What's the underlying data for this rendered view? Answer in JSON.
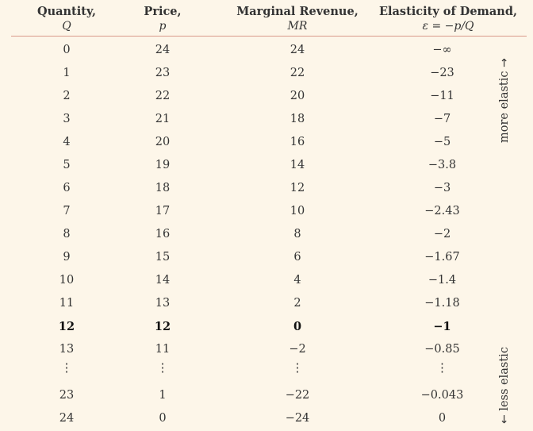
{
  "headers": {
    "quantity": {
      "title": "Quantity,",
      "symbol": "Q"
    },
    "price": {
      "title": "Price,",
      "symbol": "p"
    },
    "mr": {
      "title": "Marginal Revenue,",
      "symbol": "MR"
    },
    "elasticity": {
      "title": "Elasticity of Demand,",
      "symbol": "ε = −p/Q"
    }
  },
  "rows": [
    {
      "q": "0",
      "p": "24",
      "mr": "24",
      "e": "−∞"
    },
    {
      "q": "1",
      "p": "23",
      "mr": "22",
      "e": "−23"
    },
    {
      "q": "2",
      "p": "22",
      "mr": "20",
      "e": "−11"
    },
    {
      "q": "3",
      "p": "21",
      "mr": "18",
      "e": "−7"
    },
    {
      "q": "4",
      "p": "20",
      "mr": "16",
      "e": "−5"
    },
    {
      "q": "5",
      "p": "19",
      "mr": "14",
      "e": "−3.8"
    },
    {
      "q": "6",
      "p": "18",
      "mr": "12",
      "e": "−3"
    },
    {
      "q": "7",
      "p": "17",
      "mr": "10",
      "e": "−2.43"
    },
    {
      "q": "8",
      "p": "16",
      "mr": "8",
      "e": "−2"
    },
    {
      "q": "9",
      "p": "15",
      "mr": "6",
      "e": "−1.67"
    },
    {
      "q": "10",
      "p": "14",
      "mr": "4",
      "e": "−1.4"
    },
    {
      "q": "11",
      "p": "13",
      "mr": "2",
      "e": "−1.18"
    },
    {
      "q": "12",
      "p": "12",
      "mr": "0",
      "e": "−1",
      "bold": true
    },
    {
      "q": "13",
      "p": "11",
      "mr": "−2",
      "e": "−0.85"
    },
    {
      "q": "⋮",
      "p": "⋮",
      "mr": "⋮",
      "e": "⋮",
      "dots": true
    },
    {
      "q": "23",
      "p": "1",
      "mr": "−22",
      "e": "−0.043"
    },
    {
      "q": "24",
      "p": "0",
      "mr": "−24",
      "e": "0"
    }
  ],
  "side_labels": {
    "top": "more elastic",
    "top_arrow": "→",
    "bottom": "less elastic",
    "bottom_arrow": "←"
  }
}
